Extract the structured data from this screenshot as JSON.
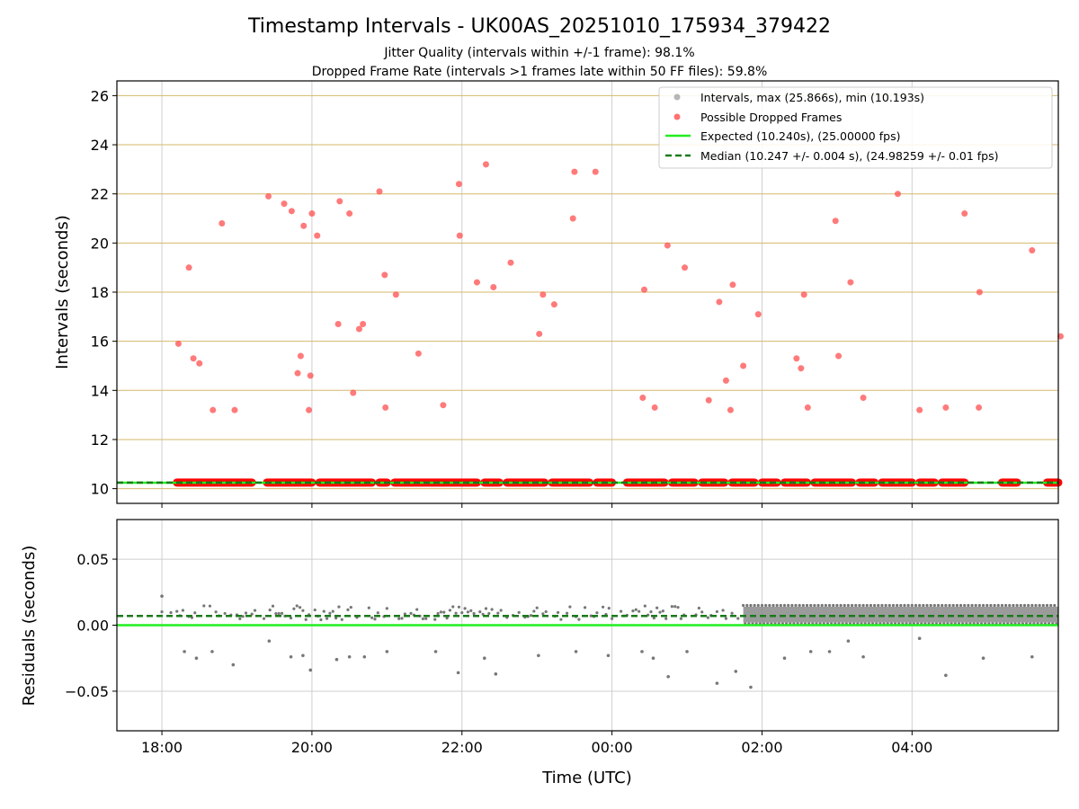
{
  "chart_data": [
    {
      "type": "scatter",
      "title": "Timestamp Intervals - UK00AS_20251010_175934_379422",
      "subtitle_lines": [
        "Jitter Quality (intervals within +/-1 frame): 98.1%",
        "Dropped Frame Rate (intervals >1 frames late within 50 FF files): 59.8%"
      ],
      "xlabel": "",
      "ylabel": "Intervals (seconds)",
      "xlim_hours": [
        -0.6,
        11.95
      ],
      "ylim": [
        9.4,
        26.6
      ],
      "yticks": [
        10,
        12,
        14,
        16,
        18,
        20,
        22,
        24,
        26
      ],
      "xticks": [
        0,
        2,
        4,
        6,
        8,
        10
      ],
      "xtick_labels": [
        "18:00",
        "20:00",
        "22:00",
        "00:00",
        "02:00",
        "04:00"
      ],
      "x_axis_origin": "18:00 UTC (x in hours)",
      "hgrid_color": "#d4b86a",
      "expected_value": 10.24,
      "median_value": 10.247,
      "legend": [
        {
          "label": "Intervals, max (25.866s), min (10.193s)",
          "marker": "dot",
          "color": "#999999"
        },
        {
          "label": "Possible Dropped Frames",
          "marker": "dot",
          "color": "#ff4d4d"
        },
        {
          "label": "Expected (10.240s), (25.00000 fps)",
          "marker": "line",
          "color": "#22ee22"
        },
        {
          "label": "Median (10.247 +/- 0.004 s), (24.98259 +/- 0.01 fps)",
          "marker": "dash",
          "color": "#1a7a1a"
        }
      ],
      "legend_position": "top-right",
      "baseline_segments_hours": [
        [
          0.2,
          1.2
        ],
        [
          1.4,
          2.0
        ],
        [
          2.1,
          2.8
        ],
        [
          2.9,
          3.0
        ],
        [
          3.1,
          4.2
        ],
        [
          4.3,
          4.5
        ],
        [
          4.6,
          5.1
        ],
        [
          5.2,
          5.7
        ],
        [
          5.8,
          6.0
        ],
        [
          6.2,
          6.7
        ],
        [
          6.8,
          7.1
        ],
        [
          7.2,
          7.5
        ],
        [
          7.6,
          7.9
        ],
        [
          8.0,
          8.2
        ],
        [
          8.3,
          8.6
        ],
        [
          8.7,
          9.2
        ],
        [
          9.3,
          9.5
        ],
        [
          9.6,
          10.0
        ],
        [
          10.1,
          10.3
        ],
        [
          10.4,
          10.7
        ],
        [
          11.2,
          11.4
        ],
        [
          11.8,
          11.95
        ]
      ],
      "dropped_frames": {
        "x": [
          0.22,
          0.36,
          0.42,
          0.5,
          0.68,
          0.8,
          0.97,
          1.42,
          1.63,
          1.73,
          1.81,
          1.85,
          1.89,
          1.96,
          1.98,
          2.0,
          2.07,
          2.35,
          2.37,
          2.5,
          2.55,
          2.63,
          2.68,
          2.9,
          2.97,
          2.98,
          3.12,
          3.42,
          3.75,
          3.96,
          3.97,
          4.2,
          4.32,
          4.42,
          4.65,
          5.03,
          5.08,
          5.23,
          5.48,
          5.5,
          5.78,
          6.41,
          6.43,
          6.57,
          6.74,
          6.97,
          7.29,
          7.43,
          7.52,
          7.58,
          7.61,
          7.75,
          7.95,
          8.46,
          8.52,
          8.56,
          8.61,
          8.98,
          9.02,
          9.18,
          9.35,
          9.81,
          10.1,
          10.45,
          10.7,
          10.89,
          10.9,
          11.6,
          11.98
        ],
        "y": [
          15.9,
          19.0,
          15.3,
          15.1,
          13.2,
          20.8,
          13.2,
          21.9,
          21.6,
          21.3,
          14.7,
          15.4,
          20.7,
          13.2,
          14.6,
          21.2,
          20.3,
          16.7,
          21.7,
          21.2,
          13.9,
          16.5,
          16.7,
          22.1,
          18.7,
          13.3,
          17.9,
          15.5,
          13.4,
          22.4,
          20.3,
          18.4,
          23.2,
          18.2,
          19.2,
          16.3,
          17.9,
          17.5,
          21.0,
          22.9,
          22.9,
          13.7,
          18.1,
          13.3,
          19.9,
          19.0,
          13.6,
          17.6,
          14.4,
          13.2,
          18.3,
          15.0,
          17.1,
          15.3,
          14.9,
          17.9,
          13.3,
          20.9,
          15.4,
          18.4,
          13.7,
          22.0,
          13.2,
          13.3,
          21.2,
          13.3,
          18.0,
          19.7,
          16.2
        ]
      }
    },
    {
      "type": "scatter",
      "xlabel": "Time (UTC)",
      "ylabel": "Residuals (seconds)",
      "xlim_hours": [
        -0.6,
        11.95
      ],
      "ylim": [
        -0.08,
        0.08
      ],
      "yticks": [
        -0.05,
        0.0,
        0.05
      ],
      "ytick_labels": [
        "−0.05",
        "0.00",
        "0.05"
      ],
      "xticks": [
        0,
        2,
        4,
        6,
        8,
        10
      ],
      "xtick_labels": [
        "18:00",
        "20:00",
        "22:00",
        "00:00",
        "02:00",
        "04:00"
      ],
      "expected_value": 0.0,
      "median_value": 0.007,
      "dense_band_start_hour": 7.75,
      "outliers": {
        "x": [
          0.0,
          0.3,
          0.46,
          0.67,
          0.95,
          1.43,
          1.72,
          1.88,
          1.98,
          2.33,
          2.5,
          2.7,
          3.0,
          3.65,
          3.95,
          4.3,
          4.45,
          5.02,
          5.52,
          5.95,
          6.4,
          6.55,
          6.75,
          7.0,
          7.4,
          7.65,
          7.85,
          8.3,
          8.65,
          8.9,
          9.15,
          9.35,
          10.1,
          10.45,
          10.95,
          11.6
        ],
        "y": [
          0.022,
          -0.02,
          -0.025,
          -0.02,
          -0.03,
          -0.012,
          -0.024,
          -0.023,
          -0.034,
          -0.026,
          -0.024,
          -0.024,
          -0.02,
          -0.02,
          -0.036,
          -0.025,
          -0.037,
          -0.023,
          -0.02,
          -0.023,
          -0.02,
          -0.025,
          -0.039,
          -0.02,
          -0.044,
          -0.035,
          -0.047,
          -0.025,
          -0.02,
          -0.02,
          -0.012,
          -0.024,
          -0.01,
          -0.038,
          -0.025,
          -0.024
        ]
      }
    }
  ]
}
